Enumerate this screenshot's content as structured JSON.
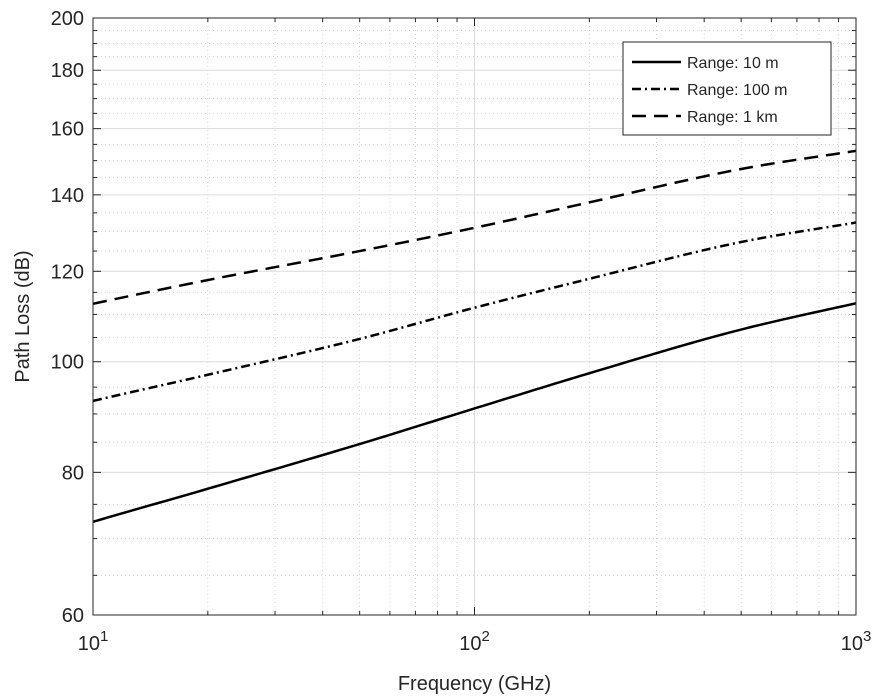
{
  "chart_data": {
    "type": "line",
    "title": "",
    "xlabel": "Frequency (GHz)",
    "ylabel": "Path Loss (dB)",
    "x_scale": "log",
    "y_scale": "log",
    "xlim": [
      10,
      1000
    ],
    "ylim": [
      60,
      200
    ],
    "grid": true,
    "minor_grid": true,
    "legend_position": "top-right",
    "x_ticks": [
      {
        "base": "10",
        "exp": "1"
      },
      {
        "base": "10",
        "exp": "2"
      },
      {
        "base": "10",
        "exp": "3"
      }
    ],
    "y_ticks": [
      "60",
      "80",
      "100",
      "120",
      "140",
      "160",
      "180",
      "200"
    ],
    "x": [
      10,
      20,
      50,
      100,
      200,
      500,
      1000
    ],
    "series": [
      {
        "name": "Range: 10 m",
        "line_style": "solid",
        "color": "#000000",
        "values": [
          72.4,
          77.4,
          84.7,
          91.0,
          97.7,
          106.7,
          112.5
        ]
      },
      {
        "name": "Range: 100 m",
        "line_style": "dash-dot",
        "color": "#000000",
        "values": [
          92.4,
          97.4,
          104.7,
          111.5,
          118.2,
          127.3,
          132.4
        ]
      },
      {
        "name": "Range: 1 km",
        "line_style": "dashed",
        "color": "#000000",
        "values": [
          112.4,
          117.9,
          125.0,
          131.0,
          137.9,
          147.5,
          153.0
        ]
      }
    ]
  }
}
